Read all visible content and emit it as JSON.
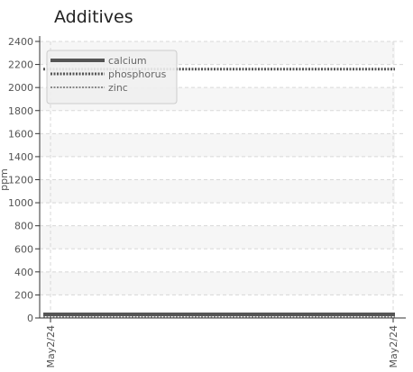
{
  "chart_data": {
    "type": "line",
    "title": "Additives",
    "ylabel": "ppm",
    "xlabel": "",
    "ylim": [
      0,
      2400
    ],
    "yticks": [
      "0",
      "200",
      "400",
      "600",
      "800",
      "1000",
      "1200",
      "1400",
      "1600",
      "1800",
      "2000",
      "2200",
      "2400"
    ],
    "x": [
      "May2/24",
      "May2/24"
    ],
    "grid": true,
    "legend_position": "top-left",
    "series": [
      {
        "name": "calcium",
        "values": [
          0,
          0
        ],
        "color": "#555555",
        "style": "solid"
      },
      {
        "name": "phosphorus",
        "values": [
          2160,
          2160
        ],
        "color": "#555555",
        "style": "dotted"
      },
      {
        "name": "zinc",
        "values": [
          0,
          0
        ],
        "color": "#888888",
        "style": "dotted"
      }
    ]
  }
}
